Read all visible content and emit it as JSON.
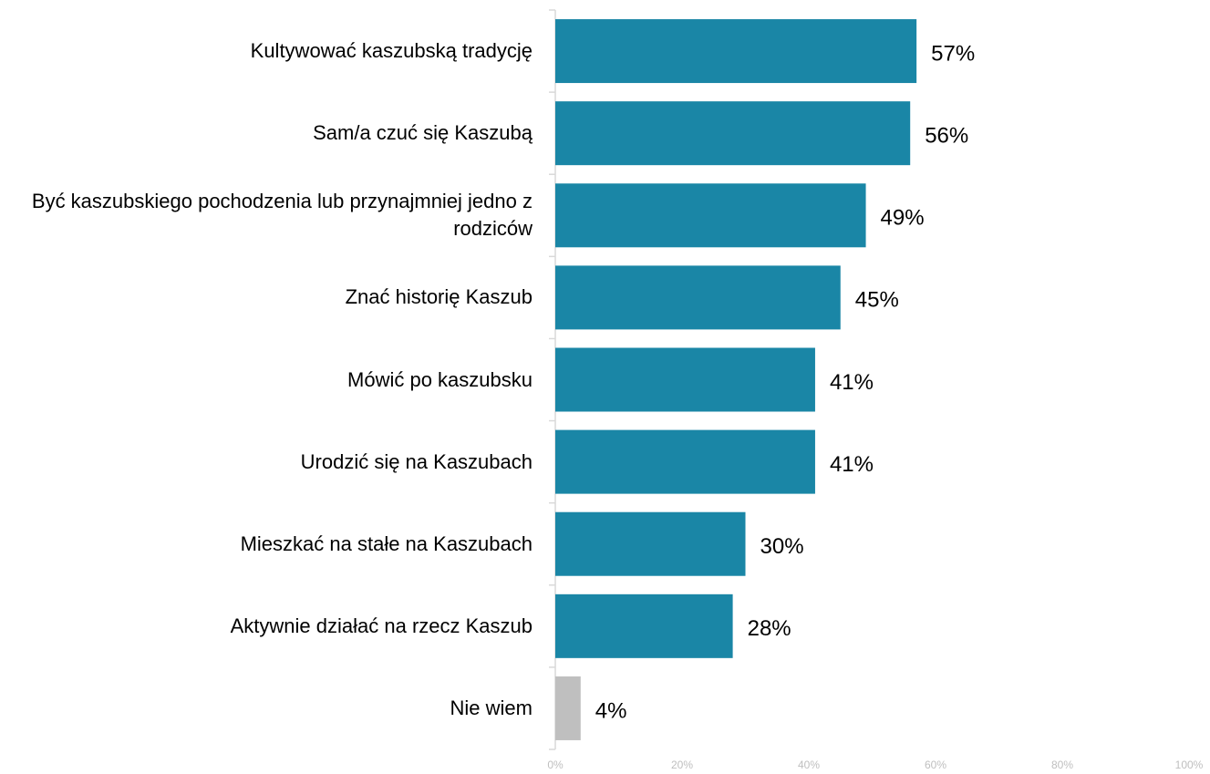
{
  "chart_data": {
    "type": "barh",
    "categories": [
      "Kultywować kaszubską tradycję",
      "Sam/a czuć się Kaszubą",
      "Być kaszubskiego pochodzenia lub przynajmniej jedno z rodziców",
      "Znać historię Kaszub",
      "Mówić po kaszubsku",
      "Urodzić się na Kaszubach",
      "Mieszkać na stałe na Kaszubach",
      "Aktywnie działać na rzecz Kaszub",
      "Nie wiem"
    ],
    "values": [
      57,
      56,
      49,
      45,
      41,
      41,
      30,
      28,
      4
    ],
    "value_labels": [
      "57%",
      "56%",
      "49%",
      "45%",
      "41%",
      "41%",
      "30%",
      "28%",
      "4%"
    ],
    "colors": [
      "#1a86a6",
      "#1a86a6",
      "#1a86a6",
      "#1a86a6",
      "#1a86a6",
      "#1a86a6",
      "#1a86a6",
      "#1a86a6",
      "#bfbfbf"
    ],
    "xlim": [
      0,
      100
    ],
    "xticks": [
      {
        "value": 0,
        "label": "0%"
      },
      {
        "value": 20,
        "label": "20%"
      },
      {
        "value": 40,
        "label": "40%"
      },
      {
        "value": 60,
        "label": "60%"
      },
      {
        "value": 80,
        "label": "80%"
      },
      {
        "value": 100,
        "label": "100%"
      }
    ],
    "grid": false
  }
}
